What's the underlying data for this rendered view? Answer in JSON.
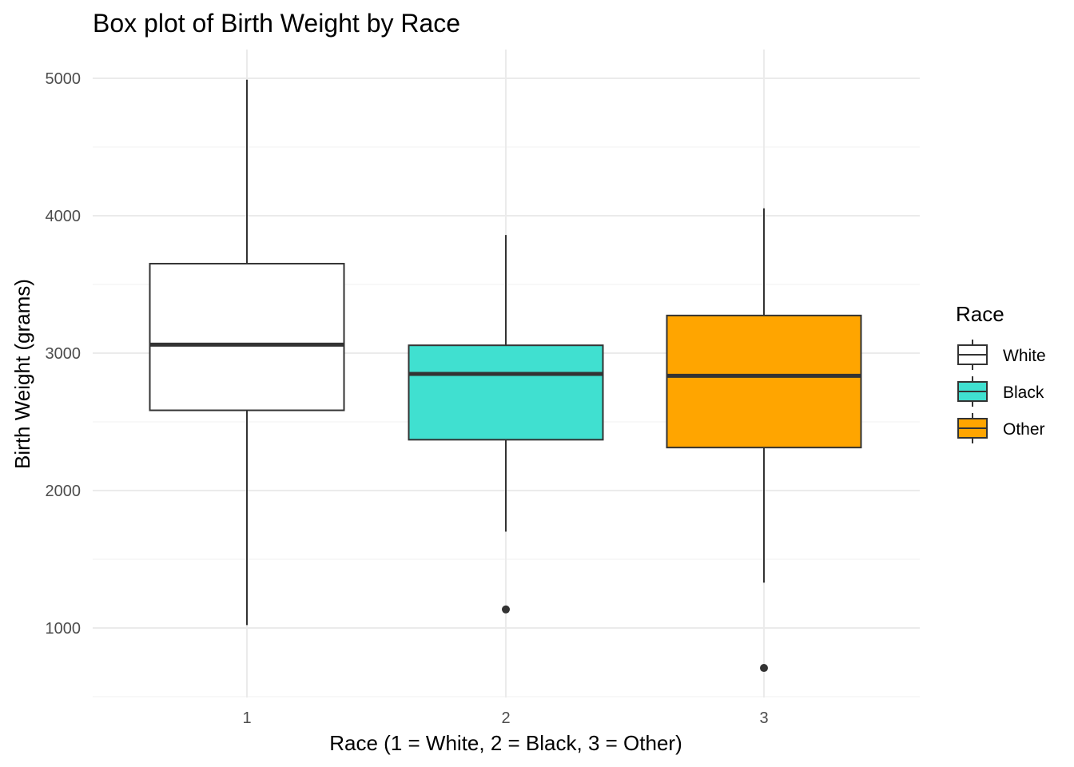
{
  "chart_data": {
    "type": "box",
    "title": "Box plot of Birth Weight by Race",
    "xlabel": "Race (1 = White, 2 = Black, 3 = Other)",
    "ylabel": "Birth Weight (grams)",
    "categories": [
      "1",
      "2",
      "3"
    ],
    "ylim": [
      500,
      5210
    ],
    "yticks": [
      1000,
      2000,
      3000,
      4000,
      5000
    ],
    "minor_yticks": [
      1500,
      2500,
      3500,
      4500
    ],
    "grid": true,
    "legend": {
      "title": "Race",
      "position": "right",
      "entries": [
        "White",
        "Black",
        "Other"
      ]
    },
    "series": [
      {
        "name": "White",
        "category": "1",
        "color": "#ffffff",
        "whisker_low": 1021,
        "q1": 2584,
        "median": 3062,
        "q3": 3651,
        "whisker_high": 4990,
        "outliers": []
      },
      {
        "name": "Black",
        "category": "2",
        "color": "#40e0d0",
        "whisker_low": 1701,
        "q1": 2370,
        "median": 2849,
        "q3": 3057,
        "whisker_high": 3860,
        "outliers": [
          1135
        ]
      },
      {
        "name": "Other",
        "category": "3",
        "color": "#ffa500",
        "whisker_low": 1330,
        "q1": 2313,
        "median": 2835,
        "q3": 3274,
        "whisker_high": 4054,
        "outliers": [
          709
        ]
      }
    ]
  }
}
